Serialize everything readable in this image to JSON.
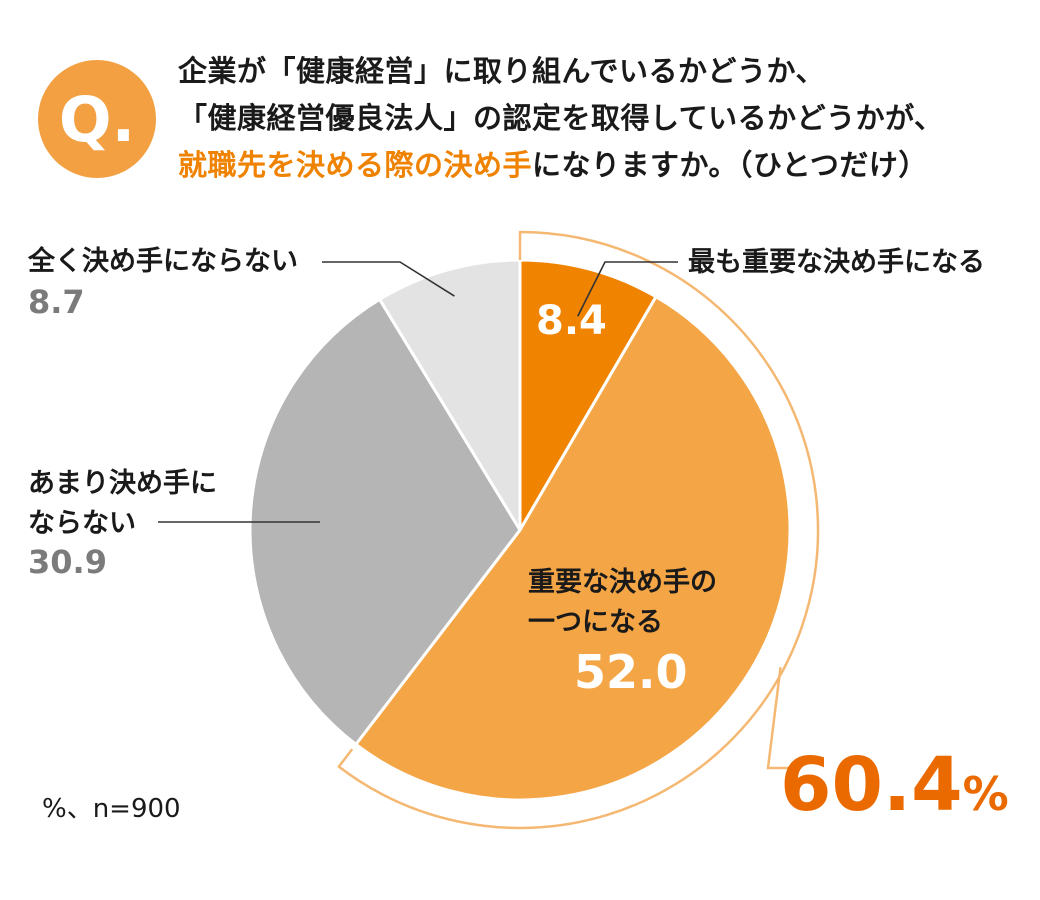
{
  "question": {
    "badge": "Q.",
    "line1": "企業が「健康経営」に取り組んでいるかどうか、",
    "line2": "「健康経営優良法人」の認定を取得しているかどうかが、",
    "line3_highlight": "就職先を決める際の決め手",
    "line3_rest": "になりますか。（ひとつだけ）"
  },
  "chart_data": {
    "type": "pie",
    "unit": "%",
    "sample": "n=900",
    "slices": [
      {
        "label": "最も重要な決め手になる",
        "value": 8.4,
        "color": "#f08300"
      },
      {
        "label": "重要な決め手の一つになる",
        "value": 52.0,
        "color": "#f4a545"
      },
      {
        "label": "あまり決め手にならない",
        "value": 30.9,
        "color": "#b5b5b5"
      },
      {
        "label": "全く決め手にならない",
        "value": 8.7,
        "color": "#e3e3e3"
      }
    ],
    "bracket_total": {
      "value": "60.4",
      "unit": "%",
      "color": "#ea6a00"
    }
  },
  "labels": {
    "s0_label": "最も重要な決め手になる",
    "s0_value": "8.4",
    "s1_line1": "重要な決め手の",
    "s1_line2": "一つになる",
    "s1_value": "52.0",
    "s2_line1": "あまり決め手に",
    "s2_line2": "ならない",
    "s2_value": "30.9",
    "s3_label": "全く決め手にならない",
    "s3_value": "8.7"
  },
  "note": "%、n=900"
}
